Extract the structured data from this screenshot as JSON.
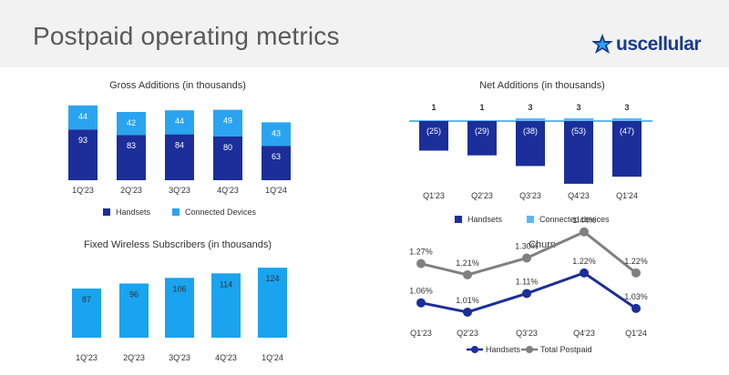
{
  "page": {
    "title": "Postpaid operating metrics",
    "logo_text": "uscellular"
  },
  "colors": {
    "handsets": "#1c2e9a",
    "connected": "#2aa4f0",
    "connected_light": "#5cb8f2",
    "fixed_wireless": "#1aa3ef",
    "total_postpaid": "#808080",
    "zero_line": "#2aa4f0",
    "brand": "#1a3b8c"
  },
  "chart_data": [
    {
      "id": "gross_additions",
      "type": "bar",
      "stacked": true,
      "title": "Gross Additions (in thousands)",
      "categories": [
        "1Q'23",
        "2Q'23",
        "3Q'23",
        "4Q'23",
        "1Q'24"
      ],
      "series": [
        {
          "name": "Handsets",
          "values": [
            93,
            83,
            84,
            80,
            63
          ]
        },
        {
          "name": "Connected Devices",
          "values": [
            44,
            42,
            44,
            49,
            43
          ]
        }
      ],
      "legend_position": "bottom"
    },
    {
      "id": "net_additions",
      "type": "bar",
      "title": "Net Additions (in thousands)",
      "categories": [
        "Q1'23",
        "Q2'23",
        "Q3'23",
        "Q4'23",
        "Q1'24"
      ],
      "series": [
        {
          "name": "Handsets",
          "values": [
            -25,
            -29,
            -38,
            -53,
            -47
          ],
          "labels": [
            "(25)",
            "(29)",
            "(38)",
            "(53)",
            "(47)"
          ]
        },
        {
          "name": "Connected devices",
          "values": [
            1,
            1,
            3,
            3,
            3
          ],
          "labels": [
            "1",
            "1",
            "3",
            "3",
            "3"
          ]
        }
      ],
      "legend_position": "bottom"
    },
    {
      "id": "fixed_wireless",
      "type": "bar",
      "title": "Fixed Wireless Subscribers (in thousands)",
      "categories": [
        "1Q'23",
        "2Q'23",
        "3Q'23",
        "4Q'23",
        "1Q'24"
      ],
      "series": [
        {
          "values": [
            87,
            96,
            106,
            114,
            124
          ]
        }
      ]
    },
    {
      "id": "churn",
      "type": "line",
      "title": "Churn",
      "categories": [
        "Q1'23",
        "Q2'23",
        "Q3'23",
        "Q4'23",
        "Q1'24"
      ],
      "series": [
        {
          "name": "Handsets",
          "values": [
            1.06,
            1.01,
            1.11,
            1.22,
            1.03
          ],
          "labels": [
            "1.06%",
            "1.01%",
            "1.11%",
            "1.22%",
            "1.03%"
          ]
        },
        {
          "name": "Total Postpaid",
          "values": [
            1.27,
            1.21,
            1.3,
            1.44,
            1.22
          ],
          "labels": [
            "1.27%",
            "1.21%",
            "1.30%",
            "1.44%",
            "1.22%"
          ]
        }
      ],
      "legend_position": "bottom"
    }
  ]
}
